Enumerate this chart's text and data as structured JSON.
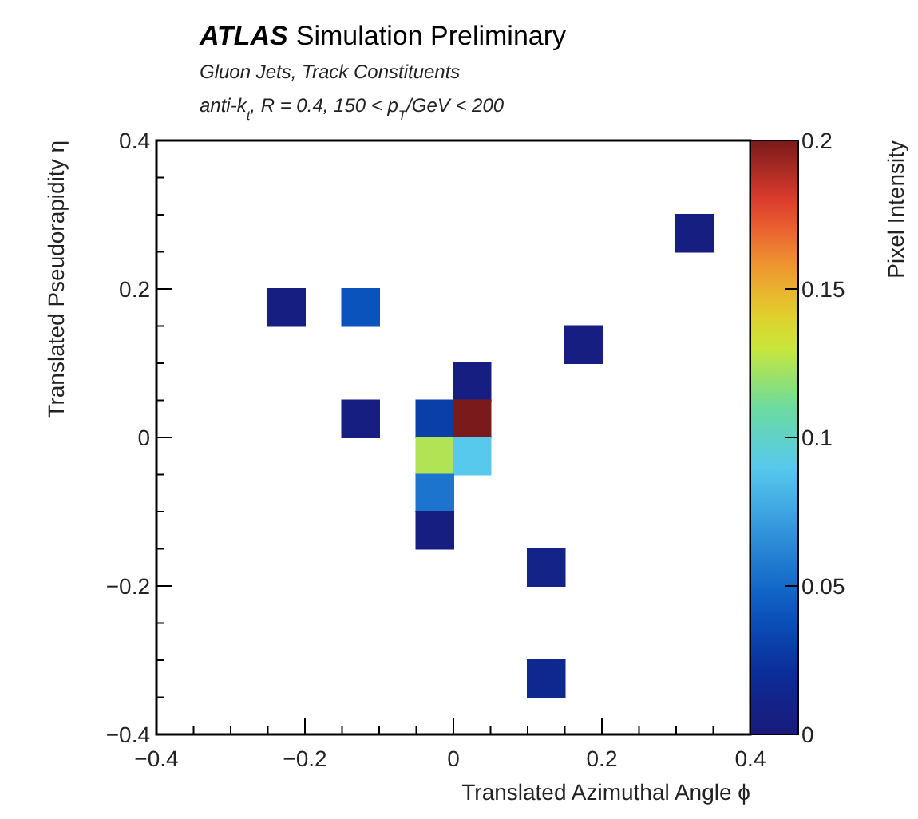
{
  "chart_data": {
    "type": "scatter",
    "title": "ATLAS Simulation Preliminary",
    "subtitle": "Gluon Jets, Track Constituents",
    "annotations": [
      "anti-k$_{t}$, R = 0.4, 150 < p$_{T}$/GeV < 200"
    ],
    "xlabel": "Translated Azimuthal Angle ϕ",
    "ylabel": "Translated Pseudorapidity η",
    "clabel": "Pixel Intensity",
    "marker": "square",
    "series": [
      {
        "x": [
          -0.225,
          -0.125,
          0.325,
          0.175,
          0.025,
          -0.125,
          -0.025,
          0.025,
          -0.025,
          0.025,
          -0.025,
          -0.025,
          0.125,
          0.125
        ],
        "values": [
          0.175,
          0.175,
          0.275,
          0.125,
          0.075,
          0.025,
          0.025,
          0.025,
          -0.025,
          -0.025,
          -0.075,
          -0.125,
          -0.175,
          -0.325
        ],
        "cvalues": [
          0.005,
          0.04,
          0.005,
          0.005,
          0.005,
          0.005,
          0.03,
          0.2,
          0.125,
          0.09,
          0.055,
          0.005,
          0.01,
          0.015
        ]
      }
    ],
    "xlim": [
      -0.4,
      0.4
    ],
    "ylim": [
      -0.4,
      0.4
    ],
    "xticks": [
      {
        "value": -0.4,
        "label": "−0.4"
      },
      {
        "value": -0.35,
        "label": null
      },
      {
        "value": -0.3,
        "label": null
      },
      {
        "value": -0.25,
        "label": null
      },
      {
        "value": -0.2,
        "label": "−0.2"
      },
      {
        "value": -0.15,
        "label": null
      },
      {
        "value": -0.1,
        "label": null
      },
      {
        "value": -0.05,
        "label": null
      },
      0,
      {
        "value": 0.05,
        "label": null
      },
      {
        "value": 0.1,
        "label": null
      },
      {
        "value": 0.15,
        "label": null
      },
      0.2,
      {
        "value": 0.25,
        "label": null
      },
      {
        "value": 0.3,
        "label": null
      },
      {
        "value": 0.35,
        "label": null
      },
      0.4
    ],
    "yticks": [
      {
        "value": -0.4,
        "label": "−0.4"
      },
      {
        "value": -0.35,
        "label": null
      },
      {
        "value": -0.3,
        "label": null
      },
      {
        "value": -0.25,
        "label": null
      },
      {
        "value": -0.2,
        "label": "−0.2"
      },
      {
        "value": -0.15,
        "label": null
      },
      {
        "value": -0.1,
        "label": null
      },
      {
        "value": -0.05,
        "label": null
      },
      0,
      {
        "value": 0.05,
        "label": null
      },
      {
        "value": 0.1,
        "label": null
      },
      {
        "value": 0.15,
        "label": null
      },
      0.2,
      {
        "value": 0.25,
        "label": null
      },
      {
        "value": 0.3,
        "label": null
      },
      {
        "value": 0.35,
        "label": null
      },
      0.4
    ],
    "clim": [
      0,
      0.2
    ],
    "cticks": [
      0,
      0.05,
      0.1,
      0.15,
      0.2
    ],
    "grid": false
  }
}
